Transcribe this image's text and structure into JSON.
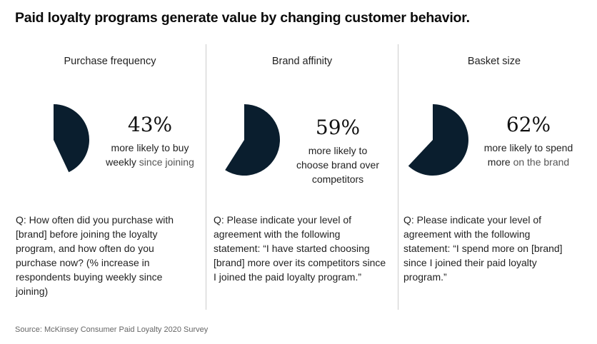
{
  "title": "Paid loyalty programs generate value by changing customer behavior.",
  "source": "Source: McKinsey Consumer Paid Loyalty 2020 Survey",
  "colors": {
    "pie": "#0A1E2E"
  },
  "chart_data": [
    {
      "type": "pie",
      "title": "Purchase frequency",
      "value": 43,
      "label": "43%",
      "desc_main": "more likely to buy weekly",
      "desc_rest": " since joining",
      "question": "Q: How often did you purchase with [brand] before joining the loyalty program, and how often do you purchase now? (% increase in respondents buying weekly since joining)"
    },
    {
      "type": "pie",
      "title": "Brand affinity",
      "value": 59,
      "label": "59%",
      "desc_main": "more likely to choose brand over competitors",
      "desc_rest": "",
      "question": "Q: Please indicate your level of agreement with the following statement: “I have started choosing [brand] more over its competitors since I joined the paid loyalty program.”"
    },
    {
      "type": "pie",
      "title": "Basket size",
      "value": 62,
      "label": "62%",
      "desc_main": "more likely to spend more",
      "desc_rest": " on the brand",
      "question": "Q: Please indicate your level of agreement with the following statement: “I spend more on [brand] since I joined their paid loyalty program.”"
    }
  ]
}
